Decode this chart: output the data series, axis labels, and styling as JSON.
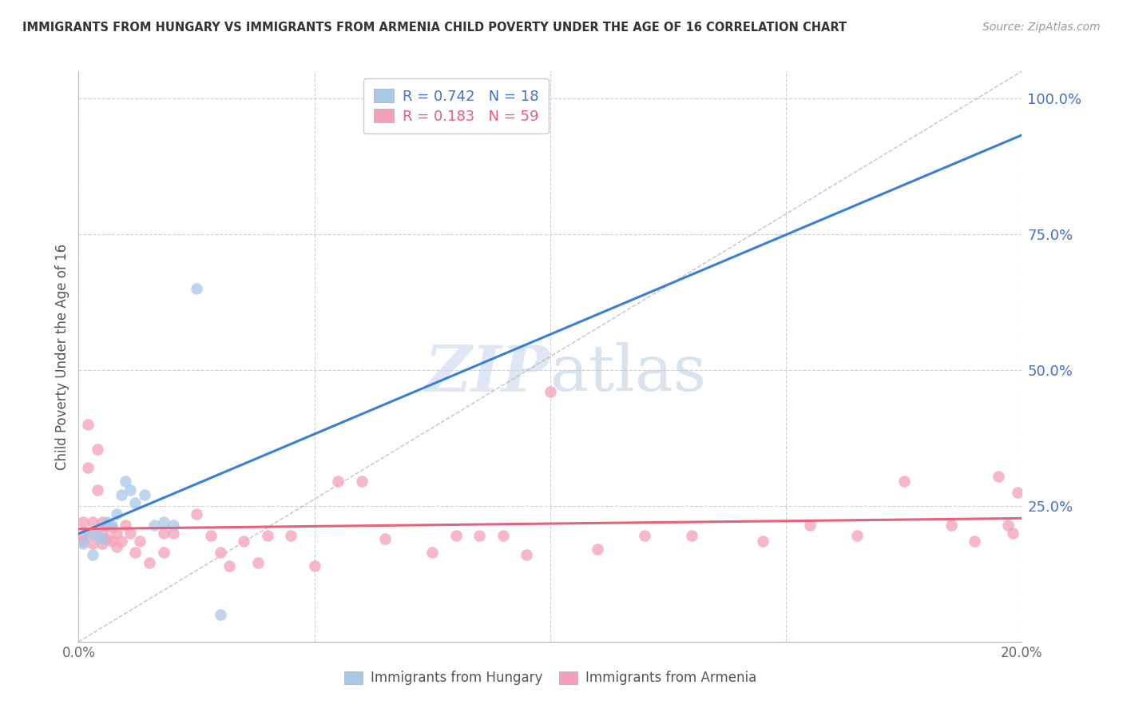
{
  "title": "IMMIGRANTS FROM HUNGARY VS IMMIGRANTS FROM ARMENIA CHILD POVERTY UNDER THE AGE OF 16 CORRELATION CHART",
  "source": "Source: ZipAtlas.com",
  "ylabel": "Child Poverty Under the Age of 16",
  "xlim": [
    0.0,
    0.2
  ],
  "ylim": [
    0.0,
    1.05
  ],
  "xticks": [
    0.0,
    0.05,
    0.1,
    0.15,
    0.2
  ],
  "xticklabels": [
    "0.0%",
    "",
    "",
    "",
    "20.0%"
  ],
  "yticks_right": [
    1.0,
    0.75,
    0.5,
    0.25
  ],
  "yticklabels_right": [
    "100.0%",
    "75.0%",
    "50.0%",
    "25.0%"
  ],
  "legend_hungary": "Immigrants from Hungary",
  "legend_armenia": "Immigrants from Armenia",
  "R_hungary": 0.742,
  "N_hungary": 18,
  "R_armenia": 0.183,
  "N_armenia": 59,
  "color_hungary": "#a8c8e8",
  "color_armenia": "#f4a0b8",
  "color_hungary_line": "#3a7fd4",
  "color_armenia_line": "#e8607a",
  "color_right_axis": "#4472c4",
  "hungary_x": [
    0.001,
    0.002,
    0.003,
    0.004,
    0.005,
    0.006,
    0.007,
    0.008,
    0.009,
    0.01,
    0.011,
    0.012,
    0.014,
    0.016,
    0.018,
    0.02,
    0.025,
    0.03
  ],
  "hungary_y": [
    0.18,
    0.2,
    0.16,
    0.195,
    0.19,
    0.22,
    0.215,
    0.235,
    0.27,
    0.295,
    0.28,
    0.255,
    0.27,
    0.215,
    0.22,
    0.215,
    0.65,
    0.05
  ],
  "armenia_x": [
    0.001,
    0.001,
    0.002,
    0.002,
    0.003,
    0.003,
    0.003,
    0.004,
    0.004,
    0.005,
    0.005,
    0.005,
    0.006,
    0.006,
    0.007,
    0.007,
    0.008,
    0.008,
    0.009,
    0.01,
    0.011,
    0.012,
    0.013,
    0.015,
    0.018,
    0.018,
    0.02,
    0.025,
    0.028,
    0.03,
    0.032,
    0.035,
    0.038,
    0.04,
    0.045,
    0.05,
    0.055,
    0.06,
    0.065,
    0.075,
    0.08,
    0.085,
    0.09,
    0.095,
    0.1,
    0.11,
    0.12,
    0.13,
    0.145,
    0.155,
    0.165,
    0.175,
    0.185,
    0.19,
    0.195,
    0.197,
    0.198,
    0.199,
    0.001
  ],
  "armenia_y": [
    0.22,
    0.195,
    0.4,
    0.32,
    0.22,
    0.2,
    0.18,
    0.355,
    0.28,
    0.22,
    0.2,
    0.18,
    0.215,
    0.19,
    0.185,
    0.21,
    0.175,
    0.2,
    0.185,
    0.215,
    0.2,
    0.165,
    0.185,
    0.145,
    0.165,
    0.2,
    0.2,
    0.235,
    0.195,
    0.165,
    0.14,
    0.185,
    0.145,
    0.195,
    0.195,
    0.14,
    0.295,
    0.295,
    0.19,
    0.165,
    0.195,
    0.195,
    0.195,
    0.16,
    0.46,
    0.17,
    0.195,
    0.195,
    0.185,
    0.215,
    0.195,
    0.295,
    0.215,
    0.185,
    0.305,
    0.215,
    0.2,
    0.275,
    0.185
  ]
}
